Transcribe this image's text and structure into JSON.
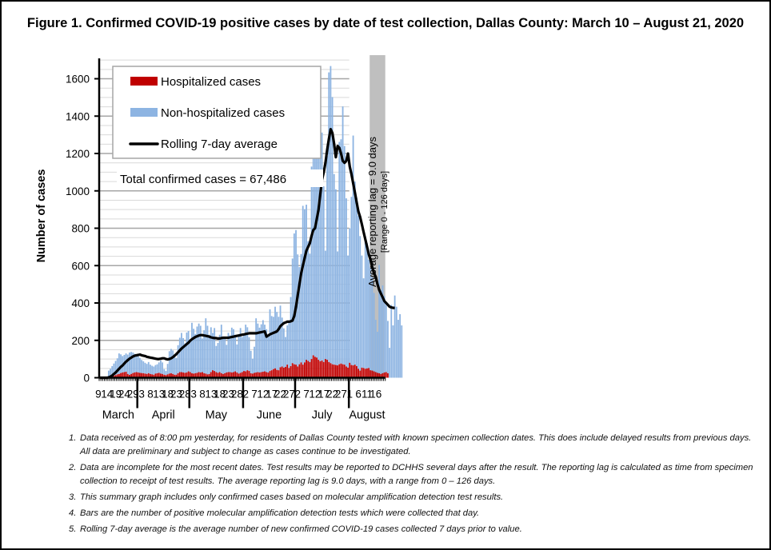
{
  "title": "Figure 1. Confirmed COVID-19 positive cases by date of test collection, Dallas County: March 10 – August 21, 2020",
  "chart_data": {
    "type": "bar",
    "stacked": true,
    "title": "Figure 1. Confirmed COVID-19 positive cases by date of test collection, Dallas County: March 10 – August 21, 2020",
    "xlabel": "",
    "ylabel": "Number of cases",
    "ylim": [
      0,
      1700
    ],
    "yticks": [
      0,
      200,
      400,
      600,
      800,
      1000,
      1200,
      1400,
      1600
    ],
    "grid": true,
    "start_date": "2020-03-10",
    "end_date": "2020-08-21",
    "x_tick_labels": [
      {
        "month": "March",
        "days": [
          "9",
          "14",
          "19",
          "24",
          "29"
        ]
      },
      {
        "month": "April",
        "days": [
          "3",
          "8",
          "13",
          "18",
          "23",
          "28"
        ]
      },
      {
        "month": "May",
        "days": [
          "3",
          "8",
          "13",
          "18",
          "23",
          "28"
        ]
      },
      {
        "month": "June",
        "days": [
          "2",
          "7",
          "12",
          "17",
          "22",
          "27"
        ]
      },
      {
        "month": "July",
        "days": [
          "2",
          "7",
          "12",
          "17",
          "22",
          "27"
        ]
      },
      {
        "month": "August",
        "days": [
          "1",
          "6",
          "11",
          "16"
        ]
      }
    ],
    "month_labels": [
      "March",
      "April",
      "May",
      "June",
      "July",
      "August"
    ],
    "legend": {
      "placement": "top-left",
      "entries": [
        {
          "label": "Hospitalized cases",
          "color": "#c00000",
          "kind": "bar"
        },
        {
          "label": "Non-hospitalized cases",
          "color": "#8db4e2",
          "kind": "bar"
        },
        {
          "label": "Rolling 7-day average",
          "color": "#000000",
          "kind": "line"
        }
      ]
    },
    "annotation_total": "Total confirmed cases = 67,486",
    "reporting_lag": {
      "label": "Average reporting lag = 9.0 days",
      "sublabel": "[Range 0 - 126 days]",
      "from_date": "2020-08-13",
      "to_date": "2020-08-21"
    },
    "series": [
      {
        "name": "Hospitalized cases",
        "color": "#c00000",
        "values": [
          0,
          0,
          0,
          0,
          0,
          2,
          4,
          6,
          10,
          14,
          18,
          20,
          25,
          28,
          30,
          32,
          20,
          15,
          20,
          25,
          28,
          30,
          28,
          26,
          25,
          24,
          22,
          20,
          24,
          20,
          18,
          16,
          22,
          24,
          26,
          22,
          20,
          16,
          14,
          18,
          22,
          24,
          20,
          16,
          16,
          24,
          30,
          30,
          28,
          26,
          28,
          34,
          30,
          24,
          22,
          24,
          26,
          30,
          28,
          30,
          24,
          22,
          18,
          20,
          30,
          40,
          36,
          30,
          26,
          30,
          24,
          20,
          24,
          28,
          30,
          30,
          28,
          30,
          34,
          28,
          22,
          26,
          30,
          36,
          34,
          40,
          36,
          24,
          22,
          26,
          28,
          30,
          28,
          30,
          32,
          34,
          30,
          28,
          36,
          40,
          46,
          50,
          42,
          40,
          56,
          60,
          54,
          58,
          70,
          52,
          62,
          78,
          72,
          70,
          60,
          72,
          82,
          70,
          82,
          96,
          90,
          84,
          100,
          120,
          112,
          108,
          96,
          88,
          92,
          84,
          100,
          96,
          84,
          78,
          72,
          70,
          68,
          66,
          72,
          76,
          72,
          70,
          60,
          54,
          80,
          68,
          66,
          70,
          62,
          48,
          38,
          54,
          52,
          48,
          50,
          52,
          40,
          38,
          34,
          30,
          26,
          24,
          20,
          24,
          28,
          30,
          24
        ]
      },
      {
        "name": "Non-hospitalized cases",
        "color": "#8db4e2",
        "values": [
          2,
          2,
          2,
          4,
          6,
          36,
          44,
          56,
          66,
          76,
          86,
          110,
          100,
          88,
          92,
          98,
          104,
          120,
          118,
          110,
          100,
          96,
          90,
          80,
          70,
          64,
          58,
          54,
          60,
          50,
          46,
          44,
          46,
          48,
          56,
          70,
          62,
          30,
          22,
          56,
          120,
          130,
          126,
          110,
          90,
          150,
          184,
          210,
          184,
          158,
          214,
          216,
          168,
          270,
          240,
          210,
          248,
          260,
          250,
          180,
          230,
          296,
          260,
          210,
          240,
          200,
          230,
          140,
          160,
          200,
          260,
          200,
          186,
          148,
          210,
          196,
          240,
          230,
          196,
          150,
          210,
          240,
          188,
          190,
          250,
          230,
          180,
          120,
          80,
          140,
          290,
          260,
          240,
          256,
          276,
          250,
          230,
          190,
          330,
          290,
          280,
          330,
          310,
          286,
          330,
          262,
          210,
          160,
          210,
          250,
          370,
          560,
          700,
          720,
          600,
          520,
          580,
          850,
          820,
          830,
          640,
          580,
          1030,
          1090,
          1160,
          1250,
          1350,
          1530,
          1220,
          940,
          580,
          1090,
          1550,
          1590,
          1430,
          1020,
          940,
          610,
          1190,
          1200,
          1380,
          1170,
          900,
          600,
          720,
          900,
          1230,
          980,
          900,
          820,
          720,
          600,
          480,
          710,
          670,
          580,
          550,
          500,
          420,
          280,
          220,
          580,
          450,
          470,
          410,
          360,
          280,
          160,
          390,
          280,
          440,
          380,
          310,
          340,
          280
        ]
      }
    ],
    "rolling_avg": [
      0,
      0,
      0,
      0,
      0,
      2,
      6,
      12,
      20,
      28,
      38,
      48,
      58,
      66,
      76,
      86,
      94,
      102,
      108,
      114,
      118,
      120,
      122,
      124,
      120,
      118,
      116,
      112,
      110,
      108,
      106,
      104,
      102,
      100,
      100,
      102,
      104,
      104,
      100,
      98,
      100,
      104,
      110,
      118,
      126,
      136,
      146,
      156,
      164,
      172,
      180,
      188,
      198,
      206,
      212,
      218,
      222,
      226,
      228,
      228,
      226,
      224,
      222,
      220,
      216,
      214,
      212,
      212,
      210,
      210,
      212,
      214,
      214,
      214,
      214,
      216,
      218,
      220,
      222,
      224,
      226,
      228,
      230,
      232,
      234,
      236,
      238,
      238,
      238,
      238,
      238,
      240,
      242,
      244,
      246,
      248,
      220,
      226,
      232,
      236,
      240,
      244,
      248,
      260,
      276,
      284,
      292,
      296,
      300,
      300,
      302,
      306,
      330,
      380,
      440,
      500,
      560,
      600,
      640,
      680,
      700,
      720,
      760,
      790,
      800,
      850,
      900,
      980,
      1060,
      1100,
      1150,
      1220,
      1280,
      1330,
      1310,
      1250,
      1180,
      1240,
      1230,
      1200,
      1160,
      1150,
      1160,
      1200,
      1130,
      1090,
      1040,
      990,
      940,
      890,
      860,
      820,
      780,
      740,
      700,
      660,
      630,
      590,
      560,
      540,
      500,
      470,
      450,
      430,
      410,
      400,
      390,
      380,
      376,
      374,
      374
    ]
  },
  "footnotes": [
    {
      "num": "1.",
      "text": "Data received as of 8:00 pm yesterday, for residents of Dallas County tested with known specimen collection dates.  This does include delayed results from previous days. All data are preliminary and subject to change as cases continue to be investigated."
    },
    {
      "num": "2.",
      "text": "Data are incomplete for the most recent dates. Test results may be reported to DCHHS several days after the result. The reporting lag is calculated as time from specimen collection to receipt of test results. The average reporting lag is 9.0 days, with a range from 0 – 126 days."
    },
    {
      "num": "3.",
      "text": "This summary graph includes only confirmed cases based on molecular amplification detection test results."
    },
    {
      "num": "4.",
      "text": "Bars are the number of positive molecular amplification detection tests which were collected that day."
    },
    {
      "num": "5.",
      "text": "Rolling 7-day average is the average number of new confirmed COVID-19 cases collected 7 days prior to value."
    }
  ]
}
